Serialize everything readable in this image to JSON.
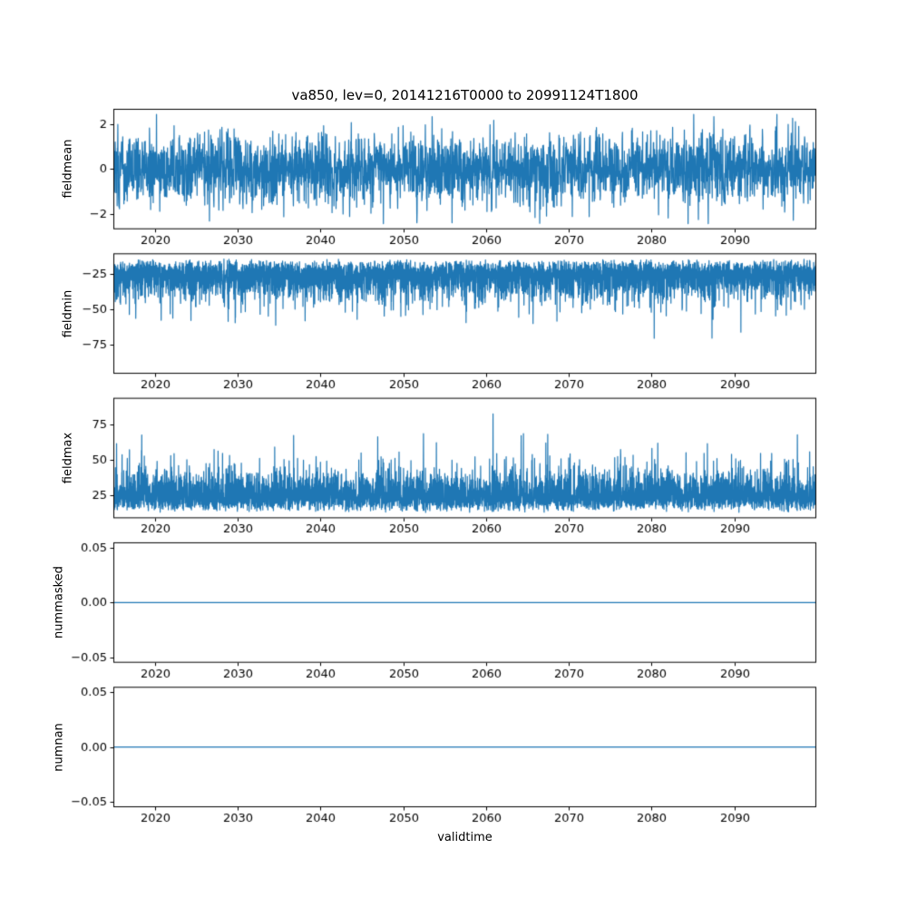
{
  "figure": {
    "background": "#ffffff",
    "line_color": "#1f77b4",
    "text_color": "#000000"
  },
  "chart_data": [
    {
      "type": "line",
      "name": "fieldmean",
      "title": "va850, lev=0, 20141216T0000 to 20991124T1800",
      "ylabel": "fieldmean",
      "xlim": [
        2014.96,
        2099.9
      ],
      "x_ticks": [
        2020,
        2030,
        2040,
        2050,
        2060,
        2070,
        2080,
        2090
      ],
      "ylim": [
        -2.7,
        2.7
      ],
      "y_ticks": [
        -2,
        0,
        2
      ],
      "y_tick_labels": [
        "−2",
        "0",
        "2"
      ],
      "stats": {
        "character": "dense high-frequency noise",
        "mean": 0.0,
        "min": -2.45,
        "max": 2.45
      },
      "gen": {
        "seed": 101,
        "n": 3000,
        "kind": "gauss",
        "base": 0,
        "sigma": 0.8,
        "clip": 2.45
      }
    },
    {
      "type": "line",
      "name": "fieldmin",
      "ylabel": "fieldmin",
      "xlim": [
        2014.96,
        2099.9
      ],
      "x_ticks": [
        2020,
        2030,
        2040,
        2050,
        2060,
        2070,
        2080,
        2090
      ],
      "ylim": [
        -96,
        -10
      ],
      "y_ticks": [
        -75,
        -50,
        -25
      ],
      "y_tick_labels": [
        "−75",
        "−50",
        "−25"
      ],
      "stats": {
        "character": "dense negative band −15..−55 with downward spikes",
        "mean": -32,
        "min": -91,
        "max": -14
      },
      "gen": {
        "seed": 202,
        "n": 5500,
        "kind": "halfneg",
        "base": -14,
        "jitter": 8,
        "sigma": 11,
        "spike_prob": 0.02,
        "spike_max": 32,
        "clip": -91
      }
    },
    {
      "type": "line",
      "name": "fieldmax",
      "ylabel": "fieldmax",
      "xlim": [
        2014.96,
        2099.9
      ],
      "x_ticks": [
        2020,
        2030,
        2040,
        2050,
        2060,
        2070,
        2080,
        2090
      ],
      "ylim": [
        9,
        94
      ],
      "y_ticks": [
        25,
        50,
        75
      ],
      "y_tick_labels": [
        "25",
        "50",
        "75"
      ],
      "stats": {
        "character": "dense positive band 15..55 with upward spikes",
        "mean": 32,
        "min": 13,
        "max": 89
      },
      "gen": {
        "seed": 303,
        "n": 5500,
        "kind": "halfpos",
        "base": 13,
        "jitter": 8,
        "sigma": 11,
        "spike_prob": 0.035,
        "spike_max": 30,
        "clip": 89
      }
    },
    {
      "type": "line",
      "name": "nummasked",
      "ylabel": "nummasked",
      "xlim": [
        2014.96,
        2099.9
      ],
      "x_ticks": [
        2020,
        2030,
        2040,
        2050,
        2060,
        2070,
        2080,
        2090
      ],
      "ylim": [
        -0.055,
        0.055
      ],
      "y_ticks": [
        -0.05,
        0,
        0.05
      ],
      "y_tick_labels": [
        "−0.05",
        "0.00",
        "0.05"
      ],
      "stats": {
        "character": "constant",
        "value": 0
      },
      "gen": {
        "seed": 1,
        "n": 2,
        "kind": "const",
        "value": 0
      }
    },
    {
      "type": "line",
      "name": "numnan",
      "ylabel": "numnan",
      "xlabel": "validtime",
      "xlim": [
        2014.96,
        2099.9
      ],
      "x_ticks": [
        2020,
        2030,
        2040,
        2050,
        2060,
        2070,
        2080,
        2090
      ],
      "ylim": [
        -0.055,
        0.055
      ],
      "y_ticks": [
        -0.05,
        0,
        0.05
      ],
      "y_tick_labels": [
        "−0.05",
        "0.00",
        "0.05"
      ],
      "stats": {
        "character": "constant",
        "value": 0
      },
      "gen": {
        "seed": 2,
        "n": 2,
        "kind": "const",
        "value": 0
      }
    }
  ]
}
